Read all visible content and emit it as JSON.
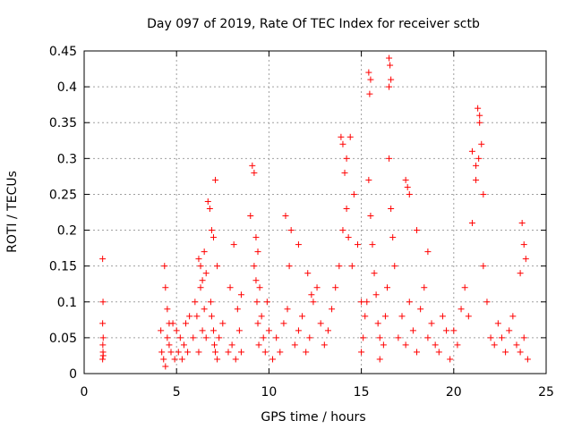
{
  "chart_data": {
    "type": "scatter",
    "title": "Day 097 of 2019, Rate Of TEC Index for receiver sctb",
    "xlabel": "GPS time / hours",
    "ylabel": "ROTI / TECUs",
    "xlim": [
      0,
      25
    ],
    "ylim": [
      0,
      0.45
    ],
    "x_ticks": [
      0,
      5,
      10,
      15,
      20,
      25
    ],
    "x_tick_labels": [
      "0",
      "5",
      "10",
      "15",
      "20",
      "25"
    ],
    "y_ticks": [
      0,
      0.05,
      0.1,
      0.15,
      0.2,
      0.25,
      0.3,
      0.35,
      0.4,
      0.45
    ],
    "y_tick_labels": [
      "0",
      "0.05",
      "0.1",
      "0.15",
      "0.2",
      "0.25",
      "0.3",
      "0.35",
      "0.4",
      "0.45"
    ],
    "grid": true,
    "marker": "+",
    "color": "#ff0000",
    "series": [
      {
        "name": "ROTI",
        "x": [
          1.0,
          1.02,
          1.0,
          1.03,
          1.01,
          1.02,
          1.0,
          1.03,
          4.15,
          4.2,
          4.3,
          4.4,
          4.5,
          4.6,
          4.7,
          4.8,
          4.9,
          5.0,
          5.1,
          5.2,
          5.3,
          5.4,
          5.5,
          5.6,
          5.7,
          4.35,
          4.4,
          4.5,
          4.6,
          5.9,
          6.0,
          6.1,
          6.2,
          6.3,
          6.4,
          6.5,
          6.6,
          6.2,
          6.3,
          6.4,
          6.5,
          6.6,
          6.7,
          6.8,
          6.9,
          7.0,
          7.1,
          7.2,
          6.85,
          6.9,
          7.0,
          7.05,
          7.1,
          7.2,
          7.3,
          7.5,
          7.8,
          8.0,
          8.2,
          8.4,
          8.5,
          7.9,
          8.1,
          8.3,
          8.5,
          9.0,
          9.1,
          9.2,
          9.3,
          9.4,
          9.5,
          9.6,
          9.7,
          9.8,
          9.9,
          10.0,
          9.2,
          9.3,
          9.35,
          9.4,
          9.45,
          10.2,
          10.4,
          10.6,
          10.8,
          11.0,
          11.2,
          11.4,
          11.6,
          11.8,
          12.0,
          12.2,
          12.4,
          12.6,
          12.8,
          10.9,
          11.1,
          11.6,
          12.1,
          12.3,
          13.0,
          13.2,
          13.4,
          13.6,
          13.8,
          14.0,
          14.2,
          14.4,
          14.6,
          14.8,
          15.0,
          13.9,
          14.0,
          14.1,
          14.2,
          14.3,
          14.5,
          15.0,
          15.1,
          15.2,
          15.3,
          15.4,
          15.5,
          15.6,
          15.7,
          15.8,
          15.9,
          16.0,
          15.4,
          15.5,
          15.45,
          16.0,
          16.2,
          16.3,
          16.4,
          16.5,
          16.6,
          16.7,
          16.8,
          16.5,
          16.55,
          16.6,
          16.5,
          17.0,
          17.2,
          17.4,
          17.6,
          17.8,
          18.0,
          18.2,
          18.4,
          18.6,
          18.8,
          19.0,
          19.2,
          19.4,
          19.6,
          19.8,
          17.4,
          17.5,
          17.6,
          18.0,
          18.6,
          20.0,
          20.2,
          20.4,
          20.6,
          20.8,
          21.0,
          21.2,
          21.4,
          21.6,
          21.8,
          22.0,
          21.3,
          21.4,
          21.5,
          21.35,
          21.0,
          21.2,
          21.6,
          22.2,
          22.4,
          22.6,
          22.8,
          23.0,
          23.2,
          23.4,
          23.6,
          23.8,
          24.0,
          23.7,
          23.8,
          23.9,
          23.6
        ],
        "y": [
          0.16,
          0.1,
          0.07,
          0.05,
          0.04,
          0.03,
          0.02,
          0.025,
          0.06,
          0.03,
          0.02,
          0.01,
          0.05,
          0.04,
          0.03,
          0.07,
          0.02,
          0.06,
          0.03,
          0.05,
          0.02,
          0.04,
          0.07,
          0.03,
          0.08,
          0.15,
          0.12,
          0.09,
          0.07,
          0.05,
          0.1,
          0.08,
          0.03,
          0.12,
          0.06,
          0.17,
          0.14,
          0.16,
          0.15,
          0.13,
          0.09,
          0.05,
          0.24,
          0.23,
          0.2,
          0.19,
          0.27,
          0.15,
          0.1,
          0.08,
          0.06,
          0.04,
          0.03,
          0.02,
          0.05,
          0.07,
          0.03,
          0.04,
          0.02,
          0.06,
          0.11,
          0.12,
          0.18,
          0.09,
          0.03,
          0.22,
          0.29,
          0.28,
          0.19,
          0.17,
          0.12,
          0.08,
          0.05,
          0.03,
          0.1,
          0.06,
          0.15,
          0.13,
          0.1,
          0.07,
          0.04,
          0.02,
          0.05,
          0.03,
          0.07,
          0.09,
          0.2,
          0.04,
          0.06,
          0.08,
          0.03,
          0.05,
          0.1,
          0.12,
          0.07,
          0.22,
          0.15,
          0.18,
          0.14,
          0.11,
          0.04,
          0.06,
          0.09,
          0.12,
          0.15,
          0.2,
          0.3,
          0.33,
          0.25,
          0.18,
          0.1,
          0.33,
          0.32,
          0.28,
          0.23,
          0.19,
          0.15,
          0.03,
          0.05,
          0.08,
          0.1,
          0.27,
          0.22,
          0.18,
          0.14,
          0.11,
          0.07,
          0.05,
          0.42,
          0.41,
          0.39,
          0.02,
          0.04,
          0.08,
          0.12,
          0.3,
          0.23,
          0.19,
          0.15,
          0.44,
          0.43,
          0.41,
          0.4,
          0.05,
          0.08,
          0.04,
          0.1,
          0.06,
          0.03,
          0.09,
          0.12,
          0.05,
          0.07,
          0.04,
          0.03,
          0.08,
          0.06,
          0.02,
          0.27,
          0.26,
          0.25,
          0.2,
          0.17,
          0.06,
          0.04,
          0.09,
          0.12,
          0.08,
          0.21,
          0.27,
          0.36,
          0.15,
          0.1,
          0.05,
          0.37,
          0.35,
          0.32,
          0.3,
          0.31,
          0.29,
          0.25,
          0.04,
          0.07,
          0.05,
          0.03,
          0.06,
          0.08,
          0.04,
          0.03,
          0.05,
          0.02,
          0.21,
          0.18,
          0.16,
          0.14
        ]
      }
    ]
  }
}
